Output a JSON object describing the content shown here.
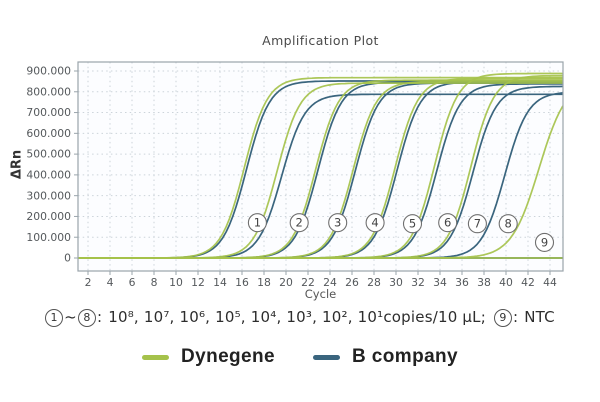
{
  "chart_data": {
    "type": "line",
    "title": "Amplification Plot",
    "xlabel": "Cycle",
    "ylabel": "ΔRn",
    "x_range": [
      1.1,
      45.2
    ],
    "y_range": [
      0,
      900
    ],
    "grid": "dotted",
    "legend_position": "bottom",
    "x_ticks": [
      2,
      4,
      6,
      8,
      10,
      12,
      14,
      16,
      18,
      20,
      22,
      24,
      26,
      28,
      30,
      32,
      34,
      36,
      38,
      40,
      42,
      44
    ],
    "y_ticks": [
      {
        "label": "900.000",
        "value": 900
      },
      {
        "label": "800.000",
        "value": 800
      },
      {
        "label": "700.000",
        "value": 700
      },
      {
        "label": "600.000",
        "value": 600
      },
      {
        "label": "500.000",
        "value": 500
      },
      {
        "label": "400.000",
        "value": 400
      },
      {
        "label": "300.000",
        "value": 300
      },
      {
        "label": "200.000",
        "value": 200
      },
      {
        "label": "100.000",
        "value": 100
      },
      {
        "label": "0",
        "value": 0
      }
    ],
    "series_model": "sigmoid: value = plateau / (1 + exp(-k*(cycle-ct)))",
    "pairs": [
      {
        "label": "1",
        "concentration": "10⁸ copies/10 µL",
        "dynegene": {
          "ct": 16.2,
          "k": 0.95,
          "plateau": 868
        },
        "b_company": {
          "ct": 16.4,
          "k": 0.95,
          "plateau": 852
        }
      },
      {
        "label": "2",
        "concentration": "10⁷ copies/10 µL",
        "dynegene": {
          "ct": 19.2,
          "k": 0.95,
          "plateau": 842
        },
        "b_company": {
          "ct": 19.6,
          "k": 0.95,
          "plateau": 788
        }
      },
      {
        "label": "3",
        "concentration": "10⁶ copies/10 µL",
        "dynegene": {
          "ct": 22.7,
          "k": 0.95,
          "plateau": 856
        },
        "b_company": {
          "ct": 22.9,
          "k": 0.95,
          "plateau": 846
        }
      },
      {
        "label": "4",
        "concentration": "10⁵ copies/10 µL",
        "dynegene": {
          "ct": 26.1,
          "k": 0.95,
          "plateau": 850
        },
        "b_company": {
          "ct": 26.3,
          "k": 0.95,
          "plateau": 842
        }
      },
      {
        "label": "5",
        "concentration": "10⁴ copies/10 µL",
        "dynegene": {
          "ct": 29.9,
          "k": 0.95,
          "plateau": 864
        },
        "b_company": {
          "ct": 30.1,
          "k": 0.95,
          "plateau": 848
        }
      },
      {
        "label": "6",
        "concentration": "10³ copies/10 µL",
        "dynegene": {
          "ct": 33.5,
          "k": 0.95,
          "plateau": 888
        },
        "b_company": {
          "ct": 33.7,
          "k": 0.95,
          "plateau": 838
        }
      },
      {
        "label": "7",
        "concentration": "10² copies/10 µL",
        "dynegene": {
          "ct": 36.8,
          "k": 0.95,
          "plateau": 878
        },
        "b_company": {
          "ct": 37.0,
          "k": 0.95,
          "plateau": 826
        }
      },
      {
        "label": "8",
        "concentration": "10¹ copies/10 µL",
        "dynegene": {
          "ct": 43.0,
          "k": 0.8,
          "plateau": 860
        },
        "b_company": {
          "ct": 39.9,
          "k": 0.95,
          "plateau": 800
        }
      }
    ],
    "ntc": {
      "label": "9",
      "concentration": "NTC",
      "dynegene": {
        "ct": 99,
        "k": 0.95,
        "plateau": 0
      },
      "b_company": {
        "ct": 99,
        "k": 0.95,
        "plateau": 0
      }
    },
    "annotations": [
      {
        "n": "1",
        "cycle": 17.4,
        "value": 170
      },
      {
        "n": "2",
        "cycle": 21.2,
        "value": 170
      },
      {
        "n": "3",
        "cycle": 24.7,
        "value": 170
      },
      {
        "n": "4",
        "cycle": 28.1,
        "value": 170
      },
      {
        "n": "5",
        "cycle": 31.5,
        "value": 165
      },
      {
        "n": "6",
        "cycle": 34.7,
        "value": 170
      },
      {
        "n": "7",
        "cycle": 37.4,
        "value": 165
      },
      {
        "n": "8",
        "cycle": 40.2,
        "value": 165
      },
      {
        "n": "9",
        "cycle": 43.5,
        "value": 75
      }
    ],
    "colors": {
      "dynegene": "#a5c24b",
      "b_company": "#3a657e",
      "grid": "#ccd4da",
      "frame": "#9aa4ab",
      "tick_text": "#55595c",
      "plot_background": "#fcfdff"
    }
  },
  "caption": {
    "range_start": "1",
    "range_tilde": "~",
    "range_end": "8",
    "colon": ":",
    "series_text": "10⁸, 10⁷, 10⁶, 10⁵, 10⁴, 10³, 10², 10¹copies/10 µL;",
    "ntc_num": "9",
    "ntc_colon": ":",
    "ntc_text": "NTC"
  },
  "legend": {
    "series": [
      {
        "label": "Dynegene",
        "color": "#a5c24b"
      },
      {
        "label": "B company",
        "color": "#3a657e"
      }
    ]
  }
}
